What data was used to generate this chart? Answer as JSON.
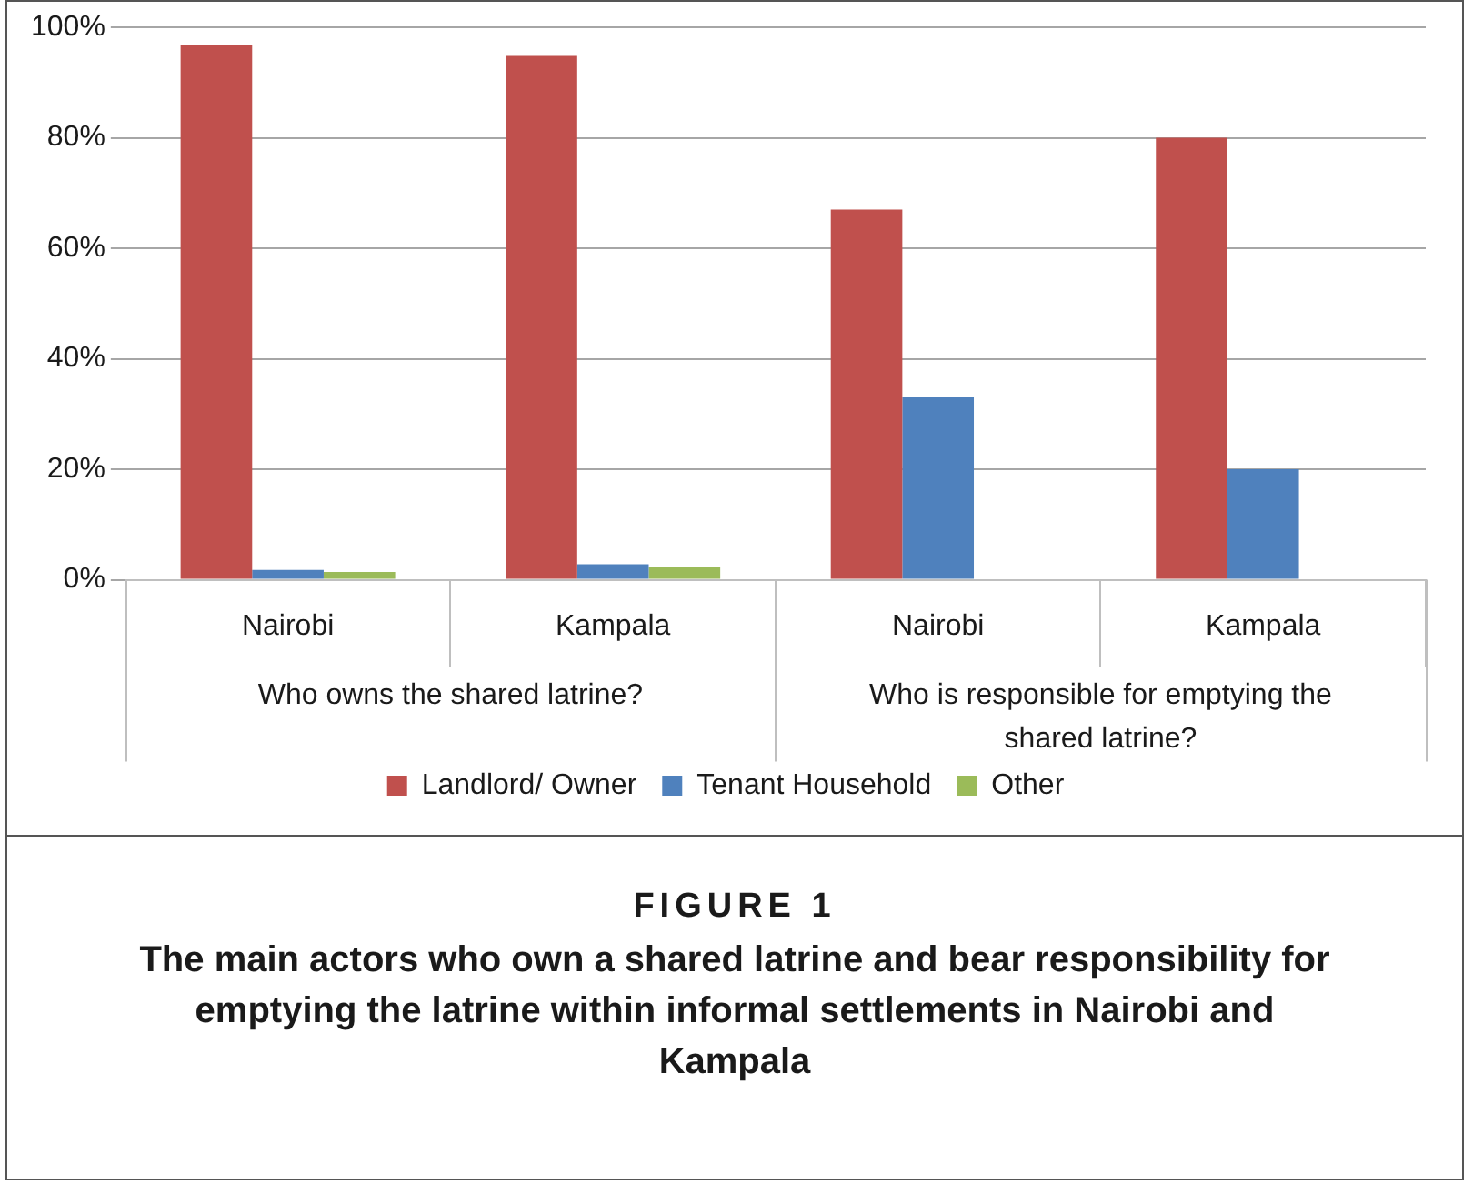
{
  "chart_data": {
    "type": "bar",
    "title": "FIGURE 1",
    "subtitle": "The main actors who own a shared latrine and bear responsibility for emptying the latrine within informal settlements in Nairobi and Kampala",
    "categories": [
      "Nairobi",
      "Kampala",
      "Nairobi",
      "Kampala"
    ],
    "series": [
      {
        "name": "Landlord/ Owner",
        "color": "#c0504d",
        "values": [
          96.7,
          94.8,
          67,
          80
        ]
      },
      {
        "name": "Tenant Household",
        "color": "#4f81bd",
        "values": [
          1.8,
          2.8,
          33,
          20
        ]
      },
      {
        "name": "Other",
        "color": "#9bbb59",
        "values": [
          1.4,
          2.4,
          null,
          null
        ]
      }
    ],
    "annotations": [
      "Who owns the shared latrine?",
      "Who is responsible for emptying the shared latrine?"
    ],
    "ylim": [
      0,
      100
    ],
    "yticks": [
      {
        "value": 0,
        "label": "0%"
      },
      {
        "value": 20,
        "label": "20%"
      },
      {
        "value": 40,
        "label": "40%"
      },
      {
        "value": 60,
        "label": "60%"
      },
      {
        "value": 80,
        "label": "80%"
      },
      {
        "value": 100,
        "label": "100%"
      }
    ],
    "grid": "y",
    "legend": "bottom"
  }
}
